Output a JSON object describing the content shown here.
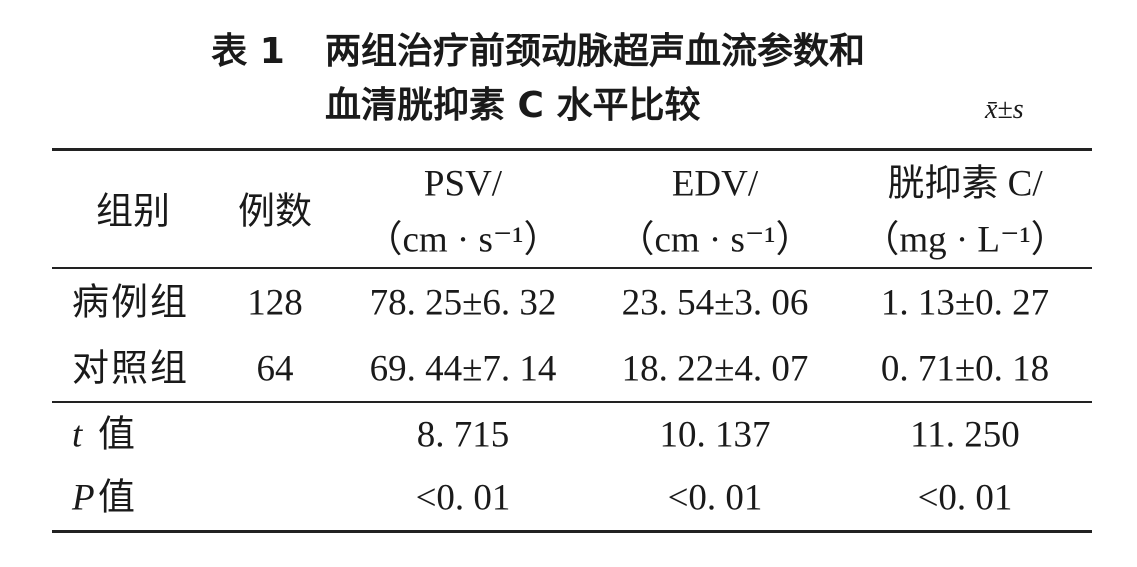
{
  "title": {
    "label": "表 1",
    "line1": "两组治疗前颈动脉超声血流参数和",
    "line2": "血清胱抑素 C 水平比较",
    "note": "x̄±s"
  },
  "table": {
    "header": [
      [
        "组别"
      ],
      [
        "例数"
      ],
      [
        "PSV/",
        "（cm · s⁻¹）"
      ],
      [
        "EDV/",
        "（cm · s⁻¹）"
      ],
      [
        "胱抑素 C/",
        "（mg · L⁻¹）"
      ]
    ],
    "rows": [
      [
        "病例组",
        "128",
        "78. 25±6. 32",
        "23. 54±3. 06",
        "1. 13±0. 27"
      ],
      [
        "对照组",
        "64",
        "69. 44±7. 14",
        "18. 22±4. 07",
        "0. 71±0. 18"
      ]
    ],
    "stats": [
      {
        "symbol": "t",
        "label": "值",
        "values": [
          "8. 715",
          "10. 137",
          "11. 250"
        ]
      },
      {
        "symbol": "P",
        "label": "值",
        "values": [
          "<0. 01",
          "<0. 01",
          "<0. 01"
        ]
      }
    ]
  }
}
